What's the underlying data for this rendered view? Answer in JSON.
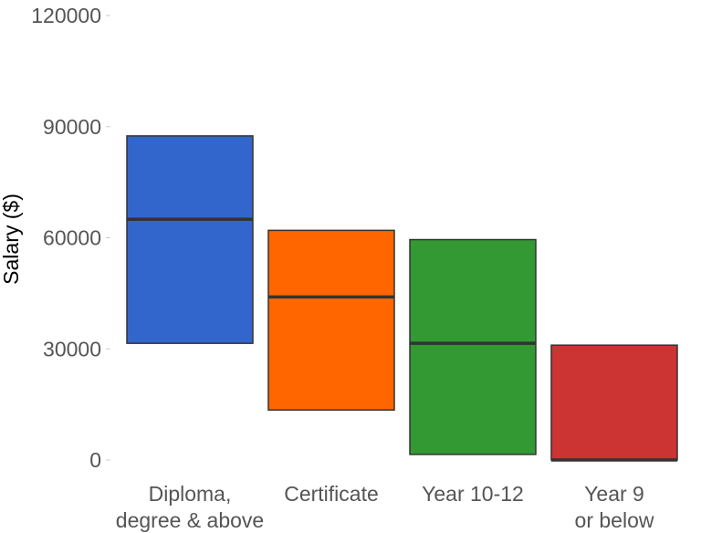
{
  "chart_data": {
    "type": "box",
    "ylabel": "Salary ($)",
    "ylim": [
      0,
      120000
    ],
    "yticks": [
      0,
      30000,
      60000,
      90000,
      120000
    ],
    "yticks_labels": [
      "0",
      "30000",
      "60000",
      "90000",
      "120000"
    ],
    "grid": false,
    "categories": [
      {
        "label_lines": [
          "Diploma,",
          "degree & above"
        ],
        "color": "#3366CC",
        "low": 31500,
        "median": 65000,
        "high": 87500
      },
      {
        "label_lines": [
          "Certificate"
        ],
        "color": "#FF6600",
        "low": 13500,
        "median": 44000,
        "high": 62000
      },
      {
        "label_lines": [
          "Year 10-12"
        ],
        "color": "#339933",
        "low": 1500,
        "median": 31500,
        "high": 59500
      },
      {
        "label_lines": [
          "Year 9",
          "or below"
        ],
        "color": "#CC3333",
        "low": 0,
        "median": 0,
        "high": 31000
      }
    ]
  }
}
